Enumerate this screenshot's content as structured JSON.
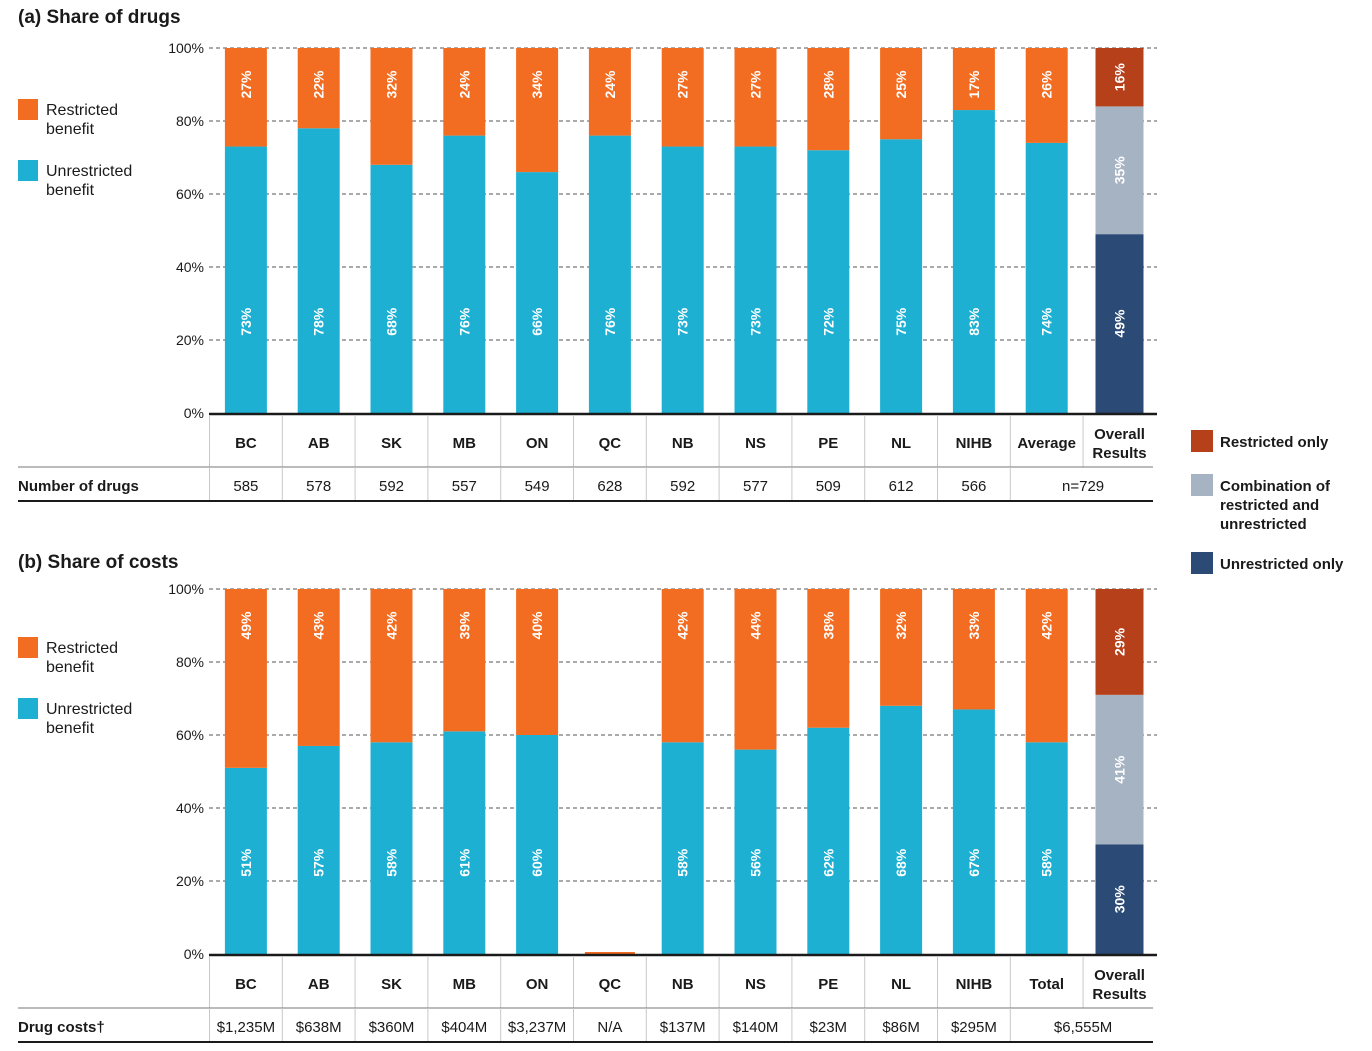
{
  "colors": {
    "restricted": "#f26d21",
    "unrestricted": "#1eb0d3",
    "restricted_only": "#b5401a",
    "combination": "#a5b3c2",
    "unrestricted_only": "#2b4a75",
    "grid": "#555555"
  },
  "legend_overall": [
    {
      "key": "restricted_only",
      "lines": [
        "Restricted only"
      ]
    },
    {
      "key": "combination",
      "lines": [
        "Combination of",
        "restricted and",
        "unrestricted"
      ]
    },
    {
      "key": "unrestricted_only",
      "lines": [
        "Unrestricted only"
      ]
    }
  ],
  "chart_data": [
    {
      "type": "bar",
      "stacked": true,
      "title": "(a) Share of drugs",
      "ylim": [
        0,
        100
      ],
      "yticks": [
        "0%",
        "20%",
        "40%",
        "60%",
        "80%",
        "100%"
      ],
      "grid": "dashed horizontal",
      "legend": {
        "placement": "left",
        "items": [
          {
            "key": "restricted",
            "lines": [
              "Restricted",
              "benefit"
            ]
          },
          {
            "key": "unrestricted",
            "lines": [
              "Unrestricted",
              "benefit"
            ]
          }
        ]
      },
      "categories": [
        "BC",
        "AB",
        "SK",
        "MB",
        "ON",
        "QC",
        "NB",
        "NS",
        "PE",
        "NL",
        "NIHB",
        "Average",
        "Overall Results"
      ],
      "series": [
        {
          "name": "Unrestricted benefit",
          "values": [
            73,
            78,
            68,
            76,
            66,
            76,
            73,
            73,
            72,
            75,
            83,
            74,
            null
          ]
        },
        {
          "name": "Restricted benefit",
          "values": [
            27,
            22,
            32,
            24,
            34,
            24,
            27,
            27,
            28,
            25,
            17,
            26,
            null
          ]
        }
      ],
      "overall": {
        "unrestricted_only": 49,
        "combination": 35,
        "restricted_only": 16
      },
      "row": {
        "label": "Number of drugs",
        "values": [
          "585",
          "578",
          "592",
          "557",
          "549",
          "628",
          "592",
          "577",
          "509",
          "612",
          "566"
        ],
        "merged": "n=729"
      }
    },
    {
      "type": "bar",
      "stacked": true,
      "title": "(b) Share of costs",
      "ylim": [
        0,
        100
      ],
      "yticks": [
        "0%",
        "20%",
        "40%",
        "60%",
        "80%",
        "100%"
      ],
      "grid": "dashed horizontal",
      "legend": {
        "placement": "left",
        "items": [
          {
            "key": "restricted",
            "lines": [
              "Restricted",
              "benefit"
            ]
          },
          {
            "key": "unrestricted",
            "lines": [
              "Unrestricted",
              "benefit"
            ]
          }
        ]
      },
      "categories": [
        "BC",
        "AB",
        "SK",
        "MB",
        "ON",
        "QC",
        "NB",
        "NS",
        "PE",
        "NL",
        "NIHB",
        "Total",
        "Overall Results"
      ],
      "series": [
        {
          "name": "Unrestricted benefit",
          "values": [
            51,
            57,
            58,
            61,
            60,
            null,
            58,
            56,
            62,
            68,
            67,
            58,
            null
          ]
        },
        {
          "name": "Restricted benefit",
          "values": [
            49,
            43,
            42,
            39,
            40,
            null,
            42,
            44,
            38,
            32,
            33,
            42,
            null
          ]
        }
      ],
      "overall": {
        "unrestricted_only": 30,
        "combination": 41,
        "restricted_only": 29
      },
      "row": {
        "label": "Drug costs†",
        "values": [
          "$1,235M",
          "$638M",
          "$360M",
          "$404M",
          "$3,237M",
          "N/A",
          "$137M",
          "$140M",
          "$23M",
          "$86M",
          "$295M"
        ],
        "merged": "$6,555M"
      }
    }
  ]
}
